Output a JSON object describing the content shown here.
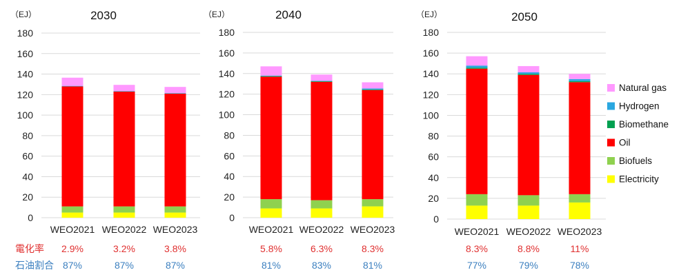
{
  "unit_label": "（EJ）",
  "row_labels": {
    "electrification": "電化率",
    "oil_share": "石油割合"
  },
  "colors": {
    "Natural gas": "#ff99ff",
    "Hydrogen": "#2aa7e0",
    "Biomethane": "#00a050",
    "Oil": "#ff0000",
    "Biofuels": "#8fd14f",
    "Electricity": "#ffff00",
    "electrification_text": "#e03030",
    "oil_share_text": "#3b7fbf",
    "grid": "#d9d9d9"
  },
  "legend": [
    "Natural gas",
    "Hydrogen",
    "Biomethane",
    "Oil",
    "Biofuels",
    "Electricity"
  ],
  "chart_data": [
    {
      "type": "bar",
      "stacked": true,
      "title": "2030",
      "ylabel": "（EJ）",
      "ylim": [
        0,
        180
      ],
      "yticks": [
        0,
        20,
        40,
        60,
        80,
        100,
        120,
        140,
        160,
        180
      ],
      "grid": true,
      "categories": [
        "WEO2021",
        "WEO2022",
        "WEO2023"
      ],
      "series": [
        {
          "name": "Electricity",
          "values": [
            5,
            5,
            5
          ]
        },
        {
          "name": "Biofuels",
          "values": [
            6,
            6,
            6
          ]
        },
        {
          "name": "Oil",
          "values": [
            117,
            112,
            110
          ]
        },
        {
          "name": "Biomethane",
          "values": [
            0,
            0,
            0
          ]
        },
        {
          "name": "Hydrogen",
          "values": [
            0.5,
            0.5,
            0.5
          ]
        },
        {
          "name": "Natural gas",
          "values": [
            8,
            6,
            6
          ]
        }
      ],
      "electrification": [
        "2.9%",
        "3.2%",
        "3.8%"
      ],
      "oil_share": [
        "87%",
        "87%",
        "87%"
      ]
    },
    {
      "type": "bar",
      "stacked": true,
      "title": "2040",
      "ylabel": "（EJ）",
      "ylim": [
        0,
        180
      ],
      "yticks": [
        0,
        20,
        40,
        60,
        80,
        100,
        120,
        140,
        160,
        180
      ],
      "grid": true,
      "categories": [
        "WEO2021",
        "WEO2022",
        "WEO2023"
      ],
      "series": [
        {
          "name": "Electricity",
          "values": [
            9,
            9,
            11
          ]
        },
        {
          "name": "Biofuels",
          "values": [
            9,
            8,
            7
          ]
        },
        {
          "name": "Oil",
          "values": [
            119,
            115,
            106
          ]
        },
        {
          "name": "Biomethane",
          "values": [
            0.5,
            0.5,
            0.5
          ]
        },
        {
          "name": "Hydrogen",
          "values": [
            0.5,
            0.5,
            1
          ]
        },
        {
          "name": "Natural gas",
          "values": [
            9,
            6,
            6
          ]
        }
      ],
      "electrification": [
        "5.8%",
        "6.3%",
        "8.3%"
      ],
      "oil_share": [
        "81%",
        "83%",
        "81%"
      ]
    },
    {
      "type": "bar",
      "stacked": true,
      "title": "2050",
      "ylabel": "（EJ）",
      "ylim": [
        0,
        180
      ],
      "yticks": [
        0,
        20,
        40,
        60,
        80,
        100,
        120,
        140,
        160,
        180
      ],
      "grid": true,
      "categories": [
        "WEO2021",
        "WEO2022",
        "WEO2023"
      ],
      "series": [
        {
          "name": "Electricity",
          "values": [
            13,
            13,
            16
          ]
        },
        {
          "name": "Biofuels",
          "values": [
            11,
            10,
            8
          ]
        },
        {
          "name": "Oil",
          "values": [
            121,
            116,
            108
          ]
        },
        {
          "name": "Biomethane",
          "values": [
            1,
            1,
            1
          ]
        },
        {
          "name": "Hydrogen",
          "values": [
            2,
            1.5,
            2
          ]
        },
        {
          "name": "Natural gas",
          "values": [
            9,
            6,
            5
          ]
        }
      ],
      "electrification": [
        "8.3%",
        "8.8%",
        "11%"
      ],
      "oil_share": [
        "77%",
        "79%",
        "78%"
      ]
    }
  ]
}
